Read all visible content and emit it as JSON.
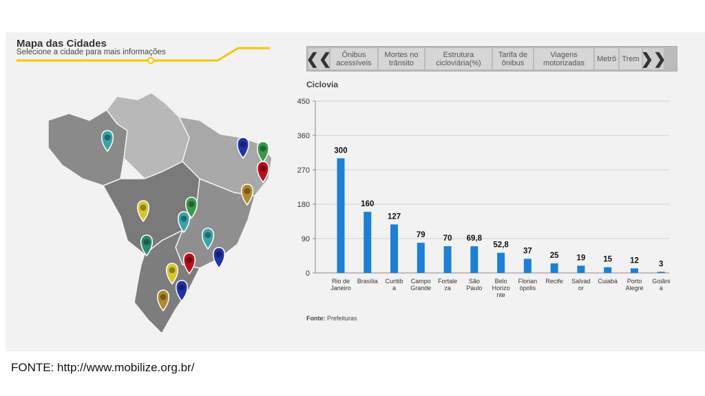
{
  "map_panel": {
    "title": "Mapa das Cidades",
    "subtitle": "Selecione a cidade para mais informações",
    "accent_color": "#f5c400",
    "pins": [
      {
        "name": "pin-teal-1",
        "color": "#3aa3a9"
      },
      {
        "name": "pin-blue-1",
        "color": "#2233aa"
      },
      {
        "name": "pin-green-1",
        "color": "#3a9a4a"
      },
      {
        "name": "pin-red-1",
        "color": "#b5121b"
      },
      {
        "name": "pin-gold-1",
        "color": "#b08a2a"
      },
      {
        "name": "pin-yellow-1",
        "color": "#d8c72a"
      },
      {
        "name": "pin-green-2",
        "color": "#3a9a4a"
      },
      {
        "name": "pin-teal-2",
        "color": "#3aa3a9"
      },
      {
        "name": "pin-teal-3",
        "color": "#3aa3a9"
      },
      {
        "name": "pin-teal-4",
        "color": "#2a8a70"
      },
      {
        "name": "pin-blue-2",
        "color": "#2233aa"
      },
      {
        "name": "pin-red-2",
        "color": "#b5121b"
      },
      {
        "name": "pin-yellow-2",
        "color": "#d8c72a"
      },
      {
        "name": "pin-blue-3",
        "color": "#2233aa"
      },
      {
        "name": "pin-gold-2",
        "color": "#b08a2a"
      }
    ]
  },
  "tabs": [
    {
      "line1": "Ônibus",
      "line2": "acessíveis"
    },
    {
      "line1": "Mortes no",
      "line2": "trânsito"
    },
    {
      "line1": "Estrutura",
      "line2": "cicloviária(%)"
    },
    {
      "line1": "Tarifa de",
      "line2": "ônibus"
    },
    {
      "line1": "Viagens",
      "line2": "motorizadas"
    },
    {
      "line1": "Metrô",
      "line2": ""
    },
    {
      "line1": "Trem",
      "line2": ""
    }
  ],
  "nav": {
    "prev": "❮❮",
    "next": "❯❯"
  },
  "chart_heading": "Ciclovia",
  "source_label": "Fonte:",
  "source_value": "Prefeituras",
  "caption": "FONTE: http://www.mobilize.org.br/",
  "chart_data": {
    "type": "bar",
    "title": "Ciclovia",
    "bar_color": "#1e7fd6",
    "ylim": [
      0,
      450
    ],
    "yticks": [
      0,
      90,
      180,
      270,
      360,
      450
    ],
    "grid": true,
    "categories": [
      [
        "Rio de",
        "Janeiro"
      ],
      [
        "Brasília"
      ],
      [
        "Curitib",
        "a"
      ],
      [
        "Campo",
        "Grande"
      ],
      [
        "Fortale",
        "za"
      ],
      [
        "São",
        "Paulo"
      ],
      [
        "Belo",
        "Horizo",
        "nte"
      ],
      [
        "Florian",
        "ópolis"
      ],
      [
        "Recife"
      ],
      [
        "Salvad",
        "or"
      ],
      [
        "Cuiabá"
      ],
      [
        "Porto",
        "Alegre"
      ],
      [
        "Goiâni",
        "a"
      ]
    ],
    "values": [
      300,
      160,
      127,
      79,
      70,
      69.8,
      52.8,
      37,
      25,
      19,
      15,
      12,
      3
    ],
    "labels": [
      "300",
      "160",
      "127",
      "79",
      "70",
      "69,8",
      "52,8",
      "37",
      "25",
      "19",
      "15",
      "12",
      "3"
    ]
  }
}
